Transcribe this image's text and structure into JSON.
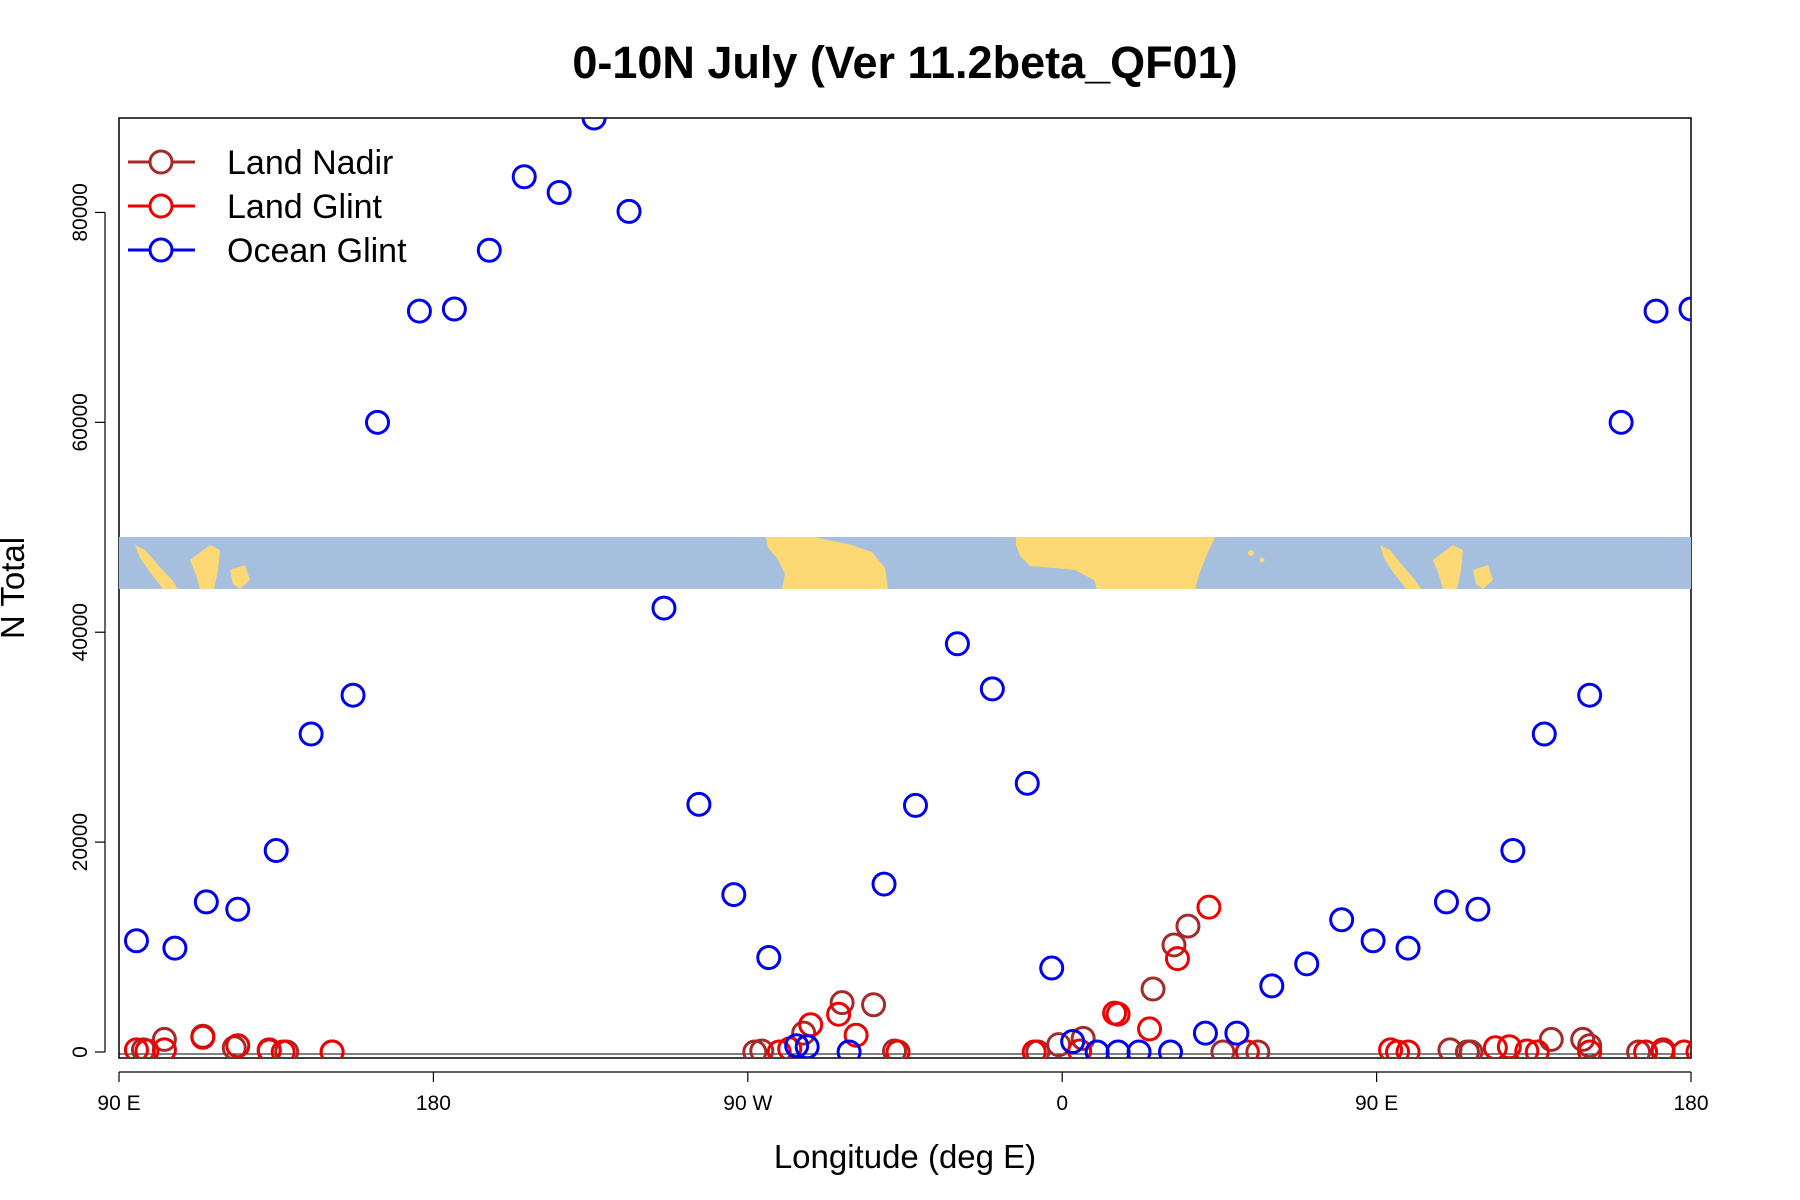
{
  "chart_data": {
    "type": "scatter",
    "title": "0-10N July (Ver 11.2beta_QF01)",
    "xlabel": "Longitude (deg E)",
    "ylabel": "N Total",
    "xlim": [
      90,
      540
    ],
    "ylim": [
      0,
      89000
    ],
    "x_ticks": [
      {
        "value": 90,
        "label": "90 E"
      },
      {
        "value": 180,
        "label": "180"
      },
      {
        "value": 270,
        "label": "90 W"
      },
      {
        "value": 360,
        "label": "0"
      },
      {
        "value": 450,
        "label": "90 E"
      },
      {
        "value": 540,
        "label": "180"
      }
    ],
    "y_ticks": [
      {
        "value": 0,
        "label": "0"
      },
      {
        "value": 20000,
        "label": "20000"
      },
      {
        "value": 40000,
        "label": "40000"
      },
      {
        "value": 60000,
        "label": "60000"
      },
      {
        "value": 80000,
        "label": "80000"
      }
    ],
    "legend_position": "top-left",
    "grid": false,
    "map_strip": {
      "lat_range": "0-10N",
      "ocean_color": "#a7bfdf",
      "land_color": "#fcd975"
    },
    "series": [
      {
        "name": "Land Nadir",
        "color": "#a52a2a",
        "x": [
          97,
          103,
          114,
          123,
          133,
          138,
          151,
          272,
          274,
          286,
          297,
          306,
          312,
          353,
          359,
          366,
          386,
          392,
          396,
          406,
          416,
          471,
          476,
          477,
          500,
          509,
          511,
          525,
          532,
          548
        ],
        "y": [
          200,
          1200,
          1500,
          400,
          100,
          0,
          0,
          0,
          100,
          1800,
          4700,
          4500,
          100,
          0,
          700,
          1300,
          6000,
          10200,
          12000,
          0,
          0,
          200,
          0,
          0,
          1200,
          1200,
          600,
          0,
          0,
          0
        ]
      },
      {
        "name": "Land Glint",
        "color": "#ee0000",
        "x": [
          95,
          98,
          103,
          114,
          124,
          133,
          137,
          151,
          279,
          282,
          288,
          296,
          301,
          313,
          352,
          365,
          375,
          376,
          385,
          393,
          402,
          413,
          454,
          456,
          459,
          484,
          488,
          493,
          496,
          511,
          527,
          532,
          538,
          542
        ],
        "y": [
          200,
          100,
          200,
          1400,
          600,
          200,
          0,
          0,
          0,
          300,
          2600,
          3600,
          1600,
          0,
          0,
          100,
          3700,
          3600,
          2200,
          8900,
          13800,
          0,
          200,
          0,
          0,
          400,
          500,
          100,
          0,
          0,
          0,
          200,
          0,
          0
        ]
      },
      {
        "name": "Ocean Glint",
        "color": "#0000ee",
        "x": [
          95,
          106,
          115,
          124,
          135,
          145,
          157,
          164,
          176,
          186,
          196,
          206,
          216,
          226,
          236,
          246,
          256,
          266,
          276,
          284,
          287,
          299,
          309,
          318,
          330,
          340,
          350,
          357,
          363,
          370,
          376,
          382,
          391,
          401,
          410,
          420,
          430,
          440,
          449,
          459,
          470,
          479,
          489,
          498,
          511,
          520,
          530,
          540
        ],
        "y": [
          10600,
          9900,
          14300,
          13600,
          19200,
          30300,
          34000,
          60000,
          70600,
          70800,
          76400,
          83400,
          81900,
          89000,
          80100,
          42300,
          23600,
          15000,
          9000,
          600,
          500,
          0,
          16000,
          23500,
          38900,
          34600,
          25600,
          8000,
          1000,
          0,
          0,
          0,
          0,
          1800,
          1800,
          6300,
          8400,
          12600,
          10600,
          9900,
          14300,
          13600,
          19200,
          30300,
          34000,
          60000,
          70600,
          70800
        ]
      }
    ]
  }
}
